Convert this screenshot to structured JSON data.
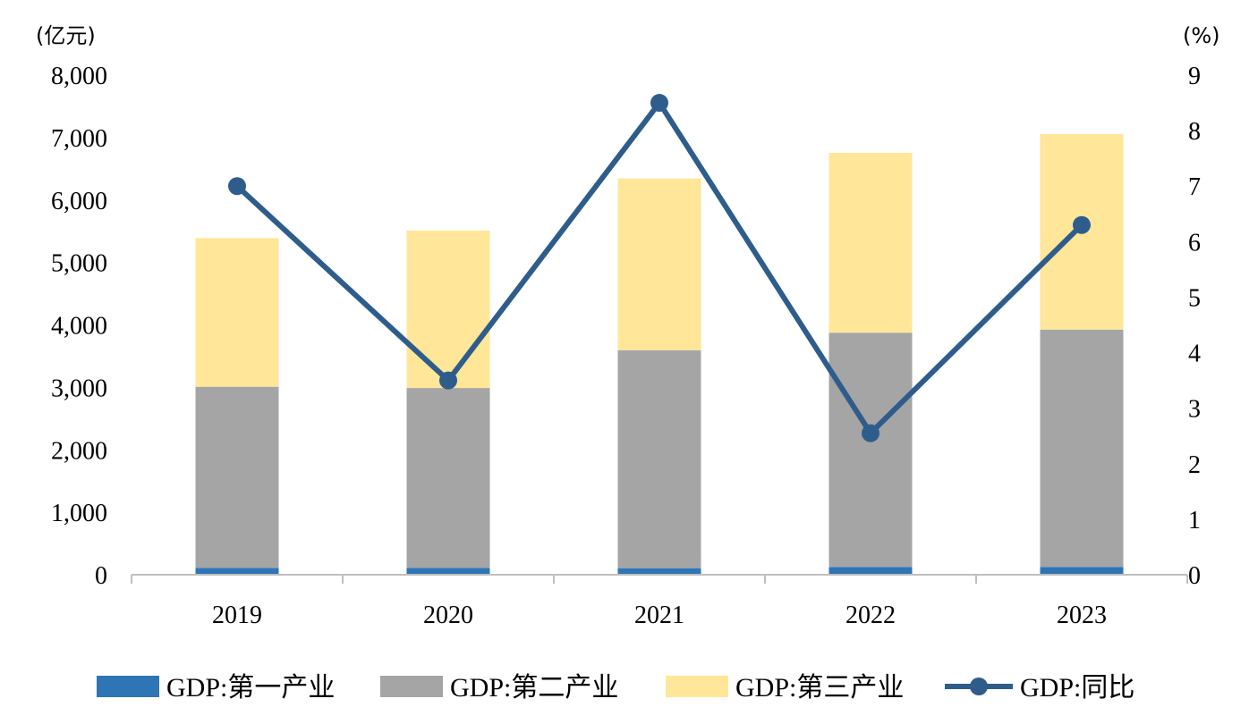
{
  "chart_data": {
    "type": "bar",
    "stacked": true,
    "categories": [
      "2019",
      "2020",
      "2021",
      "2022",
      "2023"
    ],
    "series": [
      {
        "name": "GDP:第一产业",
        "axis": "left",
        "kind": "bar",
        "color": "#2e75b6",
        "values": [
          110,
          110,
          105,
          125,
          125
        ]
      },
      {
        "name": "GDP:第二产业",
        "axis": "left",
        "kind": "bar",
        "color": "#a5a5a5",
        "values": [
          2900,
          2880,
          3490,
          3750,
          3800
        ]
      },
      {
        "name": "GDP:第三产业",
        "axis": "left",
        "kind": "bar",
        "color": "#ffe699",
        "values": [
          2380,
          2520,
          2750,
          2880,
          3130
        ]
      },
      {
        "name": "GDP:同比",
        "axis": "right",
        "kind": "line",
        "color": "#2e5d8c",
        "values": [
          7.0,
          3.5,
          8.5,
          2.55,
          6.3
        ]
      }
    ],
    "y_left": {
      "unit": "(亿元)",
      "range": [
        0,
        8000
      ],
      "ticks": [
        "0",
        "1,000",
        "2,000",
        "3,000",
        "4,000",
        "5,000",
        "6,000",
        "7,000",
        "8,000"
      ]
    },
    "y_right": {
      "unit": "(%)",
      "range": [
        0,
        9
      ],
      "ticks": [
        "0",
        "1",
        "2",
        "3",
        "4",
        "5",
        "6",
        "7",
        "8",
        "9"
      ]
    },
    "legend": "bottom",
    "grid": false
  }
}
